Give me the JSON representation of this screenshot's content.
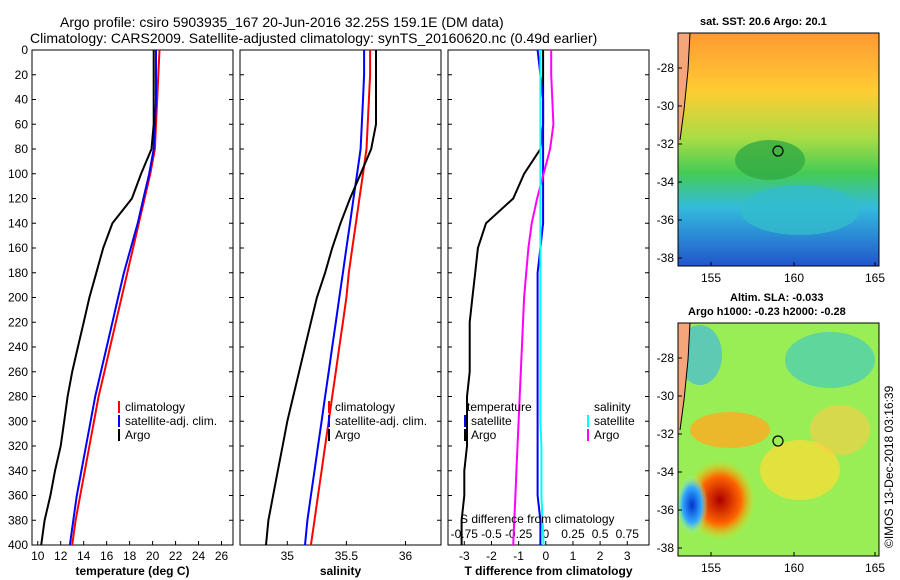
{
  "header": {
    "line1": "Argo profile: csiro 5903935_167 20-Jun-2016 32.25S 159.1E (DM data)",
    "line2": "Climatology: CARS2009. Satellite-adjusted climatology: synTS_20160620.nc (0.49d earlier)"
  },
  "depth_ticks": [
    "0",
    "20",
    "40",
    "60",
    "80",
    "100",
    "120",
    "140",
    "160",
    "180",
    "200",
    "220",
    "240",
    "260",
    "280",
    "300",
    "320",
    "340",
    "360",
    "380",
    "400"
  ],
  "colors": {
    "climatology": "#ff0000",
    "satellite": "#0000ff",
    "argo": "#000000",
    "argo_sal_diff": "#ff00ff",
    "sat_sal_diff": "#00ffff"
  },
  "legend_temp": [
    "climatology",
    "satellite-adj. clim.",
    "Argo"
  ],
  "legend_sal": [
    "climatology",
    "satellite-adj. clim.",
    "Argo"
  ],
  "legend_diff": {
    "temperature": "temperature",
    "satellite_t": "satellite",
    "argo_t": "Argo",
    "salinity": "salinity",
    "satellite_s": "satellite",
    "argo_s": "Argo"
  },
  "diff_inner_title": "S difference from climatology",
  "maps": {
    "sst_title": "sat. SST: 20.6 Argo: 20.1",
    "sla_title1": "Altim. SLA: -0.033",
    "sla_title2": "Argo h1000: -0.23 h2000: -0.28",
    "lat_ticks": [
      "-28",
      "-30",
      "-32",
      "-34",
      "-36",
      "-38"
    ],
    "lon_ticks": [
      "155",
      "160",
      "165"
    ],
    "copyright": "©IMOS 13-Dec-2018 03:16:39"
  },
  "chart_data": [
    {
      "type": "line",
      "name": "temperature",
      "xlabel": "temperature (deg C)",
      "ylabel": "depth",
      "xlim": [
        9.5,
        27
      ],
      "ylim": [
        400,
        0
      ],
      "x_ticks": [
        "10",
        "12",
        "14",
        "16",
        "18",
        "20",
        "22",
        "24",
        "26"
      ],
      "series": [
        {
          "name": "climatology",
          "color": "#ff0000",
          "depth": [
            0,
            20,
            40,
            60,
            80,
            100,
            120,
            140,
            160,
            180,
            200,
            220,
            240,
            260,
            280,
            300,
            320,
            340,
            360,
            380,
            400
          ],
          "values": [
            20.6,
            20.5,
            20.4,
            20.3,
            20.2,
            19.8,
            19.3,
            18.8,
            18.3,
            17.8,
            17.3,
            16.8,
            16.3,
            15.8,
            15.3,
            14.9,
            14.5,
            14.1,
            13.7,
            13.3,
            13.0
          ]
        },
        {
          "name": "satellite-adj. clim.",
          "color": "#0000ff",
          "depth": [
            0,
            20,
            40,
            60,
            80,
            100,
            120,
            140,
            160,
            180,
            200,
            220,
            240,
            260,
            280,
            300,
            320,
            340,
            360,
            380,
            400
          ],
          "values": [
            20.3,
            20.3,
            20.3,
            20.2,
            20.1,
            19.7,
            19.2,
            18.7,
            18.1,
            17.5,
            17.0,
            16.5,
            16.0,
            15.5,
            15.0,
            14.6,
            14.2,
            13.8,
            13.4,
            13.1,
            12.8
          ]
        },
        {
          "name": "Argo",
          "color": "#000000",
          "depth": [
            0,
            20,
            40,
            60,
            80,
            100,
            120,
            140,
            160,
            180,
            200,
            220,
            240,
            260,
            280,
            300,
            320,
            340,
            360,
            380,
            400
          ],
          "values": [
            20.1,
            20.1,
            20.1,
            20.1,
            19.9,
            19.0,
            18.2,
            16.5,
            15.7,
            15.1,
            14.5,
            14.0,
            13.5,
            13.0,
            12.6,
            12.3,
            12.0,
            11.5,
            11.1,
            10.6,
            10.3
          ]
        }
      ]
    },
    {
      "type": "line",
      "name": "salinity",
      "xlabel": "salinity",
      "ylabel": "depth",
      "xlim": [
        34.6,
        36.3
      ],
      "ylim": [
        400,
        0
      ],
      "x_ticks": [
        "35",
        "35.5",
        "36"
      ],
      "series": [
        {
          "name": "climatology",
          "color": "#ff0000",
          "depth": [
            0,
            20,
            40,
            60,
            80,
            100,
            120,
            140,
            160,
            180,
            200,
            220,
            240,
            260,
            280,
            300,
            320,
            340,
            360,
            380,
            400
          ],
          "values": [
            35.7,
            35.7,
            35.69,
            35.68,
            35.67,
            35.64,
            35.61,
            35.58,
            35.55,
            35.52,
            35.5,
            35.47,
            35.44,
            35.41,
            35.38,
            35.35,
            35.32,
            35.29,
            35.26,
            35.23,
            35.2
          ]
        },
        {
          "name": "satellite-adj. clim.",
          "color": "#0000ff",
          "depth": [
            0,
            20,
            40,
            60,
            80,
            100,
            120,
            140,
            160,
            180,
            200,
            220,
            240,
            260,
            280,
            300,
            320,
            340,
            360,
            380,
            400
          ],
          "values": [
            35.65,
            35.65,
            35.64,
            35.63,
            35.62,
            35.59,
            35.56,
            35.53,
            35.5,
            35.47,
            35.44,
            35.41,
            35.38,
            35.35,
            35.32,
            35.29,
            35.26,
            35.23,
            35.2,
            35.17,
            35.15
          ]
        },
        {
          "name": "Argo",
          "color": "#000000",
          "depth": [
            0,
            20,
            40,
            60,
            80,
            100,
            120,
            140,
            160,
            180,
            200,
            220,
            240,
            260,
            280,
            300,
            320,
            340,
            360,
            380,
            400
          ],
          "values": [
            35.75,
            35.75,
            35.75,
            35.75,
            35.71,
            35.62,
            35.53,
            35.45,
            35.38,
            35.32,
            35.25,
            35.2,
            35.15,
            35.1,
            35.05,
            35.0,
            34.96,
            34.92,
            34.88,
            34.84,
            34.82
          ]
        }
      ]
    },
    {
      "type": "line",
      "name": "differences",
      "xlabel": "T difference from climatology",
      "ylabel": "depth",
      "xlim": [
        -3.6,
        3.8
      ],
      "ylim": [
        400,
        0
      ],
      "x_ticks": [
        "-3",
        "-2",
        "-1",
        "0",
        "1",
        "2",
        "3"
      ],
      "top_ticks": [
        "-0.75",
        "-0.5",
        "-0.25",
        "0",
        "0.25",
        "0.5",
        "0.75"
      ],
      "top_xlim": [
        -0.9,
        0.95
      ],
      "series": [
        {
          "name": "Argo temperature",
          "color": "#000000",
          "axis": "T",
          "depth": [
            0,
            20,
            40,
            60,
            80,
            100,
            120,
            140,
            160,
            180,
            200,
            220,
            240,
            260,
            280,
            300,
            320,
            340,
            360,
            380,
            400
          ],
          "values": [
            -0.1,
            -0.1,
            -0.1,
            -0.1,
            -0.2,
            -0.8,
            -1.2,
            -2.2,
            -2.5,
            -2.6,
            -2.7,
            -2.8,
            -2.8,
            -2.8,
            -2.9,
            -2.9,
            -2.9,
            -3.0,
            -3.0,
            -3.1,
            -3.1
          ]
        },
        {
          "name": "satellite temperature",
          "color": "#0000ff",
          "axis": "T",
          "depth": [
            0,
            20,
            40,
            60,
            80,
            100,
            120,
            140,
            160,
            180,
            200,
            220,
            240,
            260,
            280,
            300,
            320,
            340,
            360,
            380,
            400
          ],
          "values": [
            -0.3,
            -0.2,
            -0.1,
            -0.1,
            -0.1,
            -0.1,
            -0.1,
            -0.1,
            -0.2,
            -0.3,
            -0.3,
            -0.3,
            -0.3,
            -0.3,
            -0.3,
            -0.3,
            -0.3,
            -0.3,
            -0.3,
            -0.2,
            -0.2
          ]
        },
        {
          "name": "Argo salinity",
          "color": "#ff00ff",
          "axis": "S",
          "depth": [
            0,
            20,
            40,
            60,
            80,
            100,
            120,
            140,
            160,
            180,
            200,
            220,
            240,
            260,
            280,
            300,
            320,
            340,
            360,
            380,
            400
          ],
          "values": [
            0.05,
            0.05,
            0.06,
            0.07,
            0.04,
            -0.02,
            -0.08,
            -0.13,
            -0.16,
            -0.18,
            -0.2,
            -0.21,
            -0.22,
            -0.23,
            -0.24,
            -0.25,
            -0.26,
            -0.27,
            -0.28,
            -0.29,
            -0.3
          ]
        },
        {
          "name": "satellite salinity",
          "color": "#00ffff",
          "axis": "S",
          "depth": [
            0,
            20,
            40,
            60,
            80,
            100,
            120,
            140,
            160,
            180,
            200,
            220,
            240,
            260,
            280,
            300,
            320,
            340,
            360,
            380,
            400
          ],
          "values": [
            -0.05,
            -0.05,
            -0.05,
            -0.05,
            -0.05,
            -0.05,
            -0.05,
            -0.05,
            -0.05,
            -0.05,
            -0.05,
            -0.05,
            -0.05,
            -0.05,
            -0.05,
            -0.05,
            -0.04,
            -0.04,
            -0.04,
            -0.03,
            -0.02
          ]
        }
      ]
    }
  ]
}
